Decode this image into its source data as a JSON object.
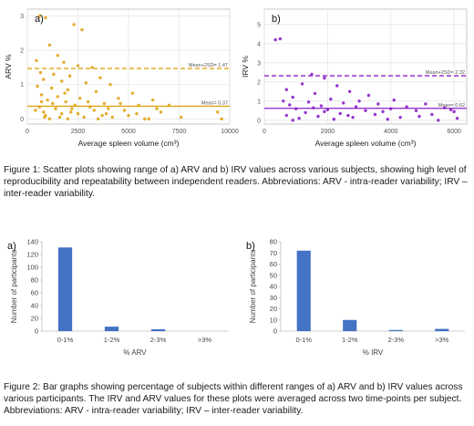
{
  "colors": {
    "arv": "#e0a416",
    "irv": "#8b1fc9",
    "bar": "#4472c4",
    "grid": "#e6e6e6",
    "axis": "#444444"
  },
  "captions": {
    "fig1": "Figure 1: Scatter plots showing range of a) ARV and b) IRV values across various subjects, showing high level of reproducibility and repeatability between independent readers. Abbreviations: ARV - intra-reader variability; IRV – inter-reader variability.",
    "fig2": "Figure 2: Bar graphs showing percentage of subjects within different ranges of a) ARV and b) IRV values across various participants. The IRV and ARV values for these plots were averaged across two time-points per subject. Abbreviations: ARV - intra-reader variability; IRV – inter-reader variability."
  },
  "chart_data": [
    {
      "id": "fig1a",
      "type": "scatter",
      "panel_label": "a)",
      "xlabel": "Average spleen volume (cm³)",
      "ylabel": "ARV %",
      "xlim": [
        0,
        10000
      ],
      "ylim": [
        -0.15,
        3.2
      ],
      "xticks": [
        0,
        2500,
        5000,
        7500,
        10000
      ],
      "yticks": [
        0,
        1,
        2,
        3
      ],
      "color_key": "arv",
      "grid": true,
      "lines": [
        {
          "y": 1.47,
          "style": "dashed",
          "label": "Mean+2SD= 1.47"
        },
        {
          "y": 0.37,
          "style": "solid",
          "label": "Mean= 0.37"
        }
      ],
      "points": [
        [
          600,
          3.0
        ],
        [
          900,
          2.95
        ],
        [
          2300,
          2.75
        ],
        [
          2700,
          2.6
        ],
        [
          1100,
          2.15
        ],
        [
          1500,
          1.85
        ],
        [
          450,
          1.7
        ],
        [
          1800,
          1.65
        ],
        [
          2500,
          1.55
        ],
        [
          3200,
          1.5
        ],
        [
          650,
          1.35
        ],
        [
          1300,
          1.3
        ],
        [
          2100,
          1.25
        ],
        [
          3600,
          1.2
        ],
        [
          800,
          1.15
        ],
        [
          1700,
          1.1
        ],
        [
          2900,
          1.05
        ],
        [
          4100,
          1.0
        ],
        [
          500,
          0.95
        ],
        [
          1200,
          0.9
        ],
        [
          2000,
          0.85
        ],
        [
          3400,
          0.8
        ],
        [
          5200,
          0.75
        ],
        [
          700,
          0.7
        ],
        [
          1500,
          0.65
        ],
        [
          2600,
          0.6
        ],
        [
          4500,
          0.6
        ],
        [
          6200,
          0.55
        ],
        [
          1000,
          0.55
        ],
        [
          1900,
          0.5
        ],
        [
          3000,
          0.5
        ],
        [
          3800,
          0.45
        ],
        [
          5500,
          0.4
        ],
        [
          7000,
          0.4
        ],
        [
          600,
          0.35
        ],
        [
          1400,
          0.3
        ],
        [
          2200,
          0.3
        ],
        [
          3300,
          0.25
        ],
        [
          4800,
          0.25
        ],
        [
          6600,
          0.2
        ],
        [
          9400,
          0.2
        ],
        [
          800,
          0.2
        ],
        [
          1700,
          0.15
        ],
        [
          2500,
          0.15
        ],
        [
          3700,
          0.1
        ],
        [
          5000,
          0.1
        ],
        [
          7600,
          0.05
        ],
        [
          900,
          0.1
        ],
        [
          1600,
          0.05
        ],
        [
          2800,
          0.05
        ],
        [
          4200,
          0.05
        ],
        [
          6000,
          0.0
        ],
        [
          1100,
          0.0
        ],
        [
          2000,
          0.0
        ],
        [
          3500,
          0.0
        ],
        [
          5800,
          0.0
        ],
        [
          9600,
          0.0
        ],
        [
          400,
          0.25
        ],
        [
          1250,
          0.45
        ],
        [
          2350,
          0.4
        ],
        [
          4000,
          0.3
        ],
        [
          5400,
          0.15
        ],
        [
          700,
          0.5
        ],
        [
          1850,
          0.75
        ],
        [
          3100,
          0.35
        ],
        [
          4600,
          0.45
        ],
        [
          6400,
          0.3
        ],
        [
          850,
          0.05
        ],
        [
          2150,
          0.2
        ],
        [
          3900,
          0.15
        ]
      ]
    },
    {
      "id": "fig1b",
      "type": "scatter",
      "panel_label": "b)",
      "xlabel": "Average spleen volume (cm³)",
      "ylabel": "IRV %",
      "xlim": [
        0,
        6400
      ],
      "ylim": [
        -0.2,
        5.8
      ],
      "xticks": [
        0,
        2000,
        4000,
        6000
      ],
      "yticks": [
        0,
        1,
        2,
        3,
        4,
        5
      ],
      "color_key": "irv",
      "grid": true,
      "lines": [
        {
          "y": 2.32,
          "style": "dashed",
          "label": "Mean+2SD= 2.32"
        },
        {
          "y": 0.62,
          "style": "solid",
          "label": "Mean= 0.62"
        }
      ],
      "points": [
        [
          350,
          4.2
        ],
        [
          500,
          4.25
        ],
        [
          1500,
          2.4
        ],
        [
          1900,
          2.2
        ],
        [
          1200,
          1.9
        ],
        [
          2300,
          1.8
        ],
        [
          700,
          1.6
        ],
        [
          2700,
          1.5
        ],
        [
          1600,
          1.4
        ],
        [
          3300,
          1.3
        ],
        [
          900,
          1.2
        ],
        [
          2100,
          1.1
        ],
        [
          4100,
          1.05
        ],
        [
          600,
          1.0
        ],
        [
          1400,
          0.95
        ],
        [
          2500,
          0.9
        ],
        [
          3600,
          0.85
        ],
        [
          5100,
          0.85
        ],
        [
          800,
          0.8
        ],
        [
          1800,
          0.75
        ],
        [
          2900,
          0.7
        ],
        [
          4500,
          0.7
        ],
        [
          5700,
          0.65
        ],
        [
          1000,
          0.6
        ],
        [
          2000,
          0.55
        ],
        [
          3200,
          0.5
        ],
        [
          4800,
          0.5
        ],
        [
          6000,
          0.45
        ],
        [
          1300,
          0.4
        ],
        [
          2400,
          0.35
        ],
        [
          3500,
          0.3
        ],
        [
          5300,
          0.3
        ],
        [
          700,
          0.25
        ],
        [
          1700,
          0.2
        ],
        [
          2800,
          0.15
        ],
        [
          4300,
          0.15
        ],
        [
          6100,
          0.1
        ],
        [
          1100,
          0.1
        ],
        [
          2200,
          0.05
        ],
        [
          3900,
          0.05
        ],
        [
          5500,
          0.0
        ],
        [
          900,
          0.0
        ],
        [
          1900,
          0.45
        ],
        [
          3000,
          1.0
        ],
        [
          4000,
          0.6
        ],
        [
          4900,
          0.2
        ],
        [
          1550,
          0.65
        ],
        [
          2650,
          0.25
        ],
        [
          3750,
          0.45
        ],
        [
          5900,
          0.55
        ]
      ]
    },
    {
      "id": "fig2a",
      "type": "bar",
      "panel_label": "a)",
      "xlabel": "% ARV",
      "ylabel": "Number of participants",
      "categories": [
        "0-1%",
        "1-2%",
        "2-3%",
        ">3%"
      ],
      "values": [
        131,
        7,
        3,
        0
      ],
      "ylim": [
        0,
        140
      ],
      "yticks": [
        0,
        20,
        40,
        60,
        80,
        100,
        120,
        140
      ],
      "color_key": "bar"
    },
    {
      "id": "fig2b",
      "type": "bar",
      "panel_label": "b)",
      "xlabel": "% IRV",
      "ylabel": "Number of participants",
      "categories": [
        "0-1%",
        "1-2%",
        "2-3%",
        ">3%"
      ],
      "values": [
        72,
        10,
        1,
        2
      ],
      "ylim": [
        0,
        80
      ],
      "yticks": [
        0,
        10,
        20,
        30,
        40,
        50,
        60,
        70,
        80
      ],
      "color_key": "bar"
    }
  ]
}
